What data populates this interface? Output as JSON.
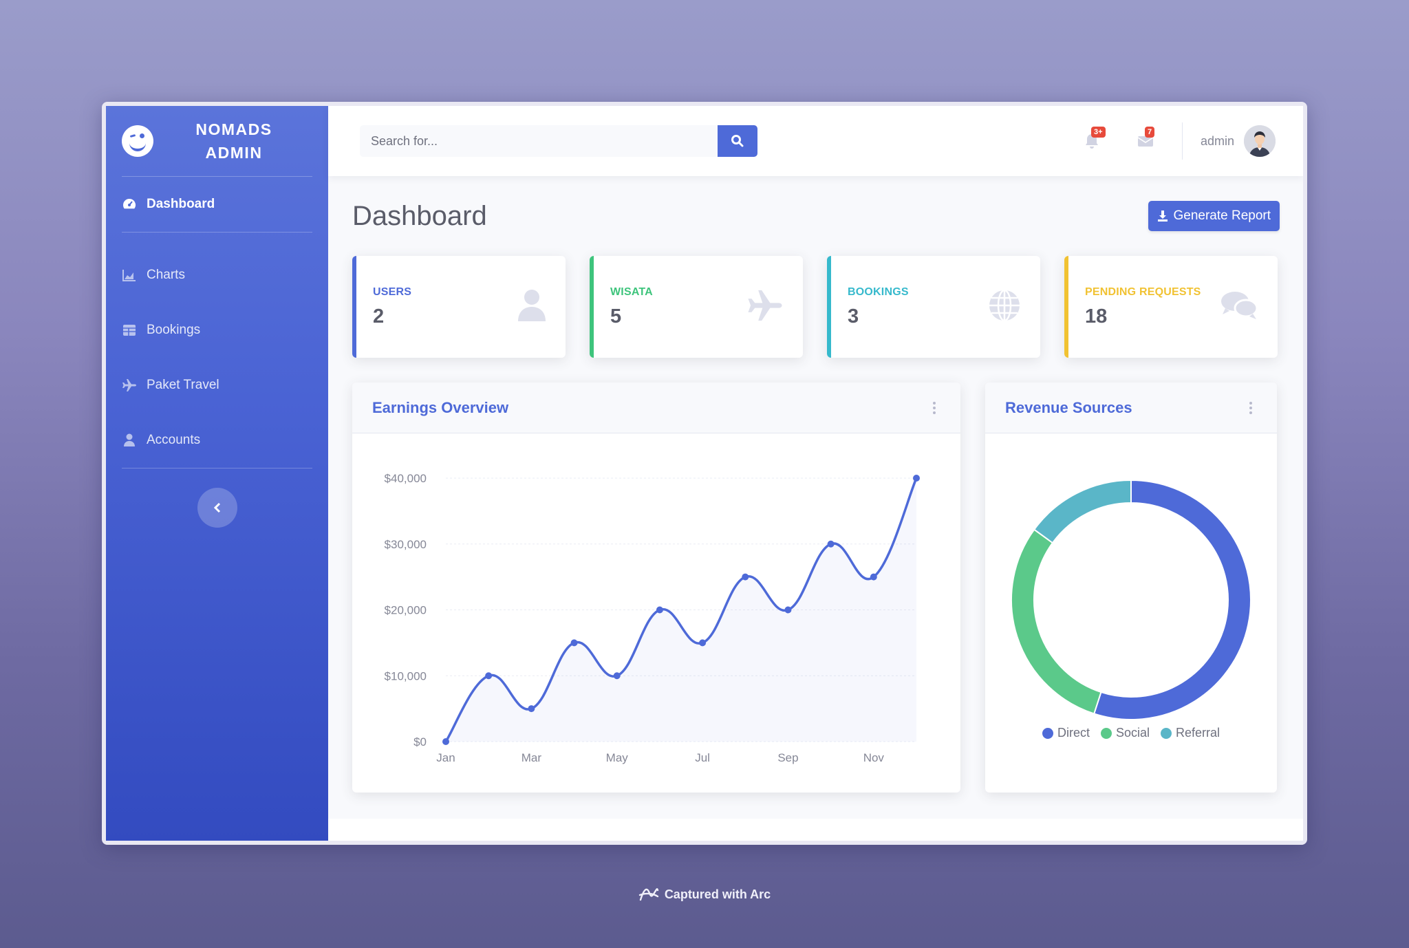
{
  "brand": {
    "line1": "NOMADS",
    "line2": "ADMIN"
  },
  "sidebar": {
    "items": [
      {
        "label": "Dashboard",
        "icon": "tachometer-icon",
        "active": true
      },
      {
        "label": "Charts",
        "icon": "area-chart-icon"
      },
      {
        "label": "Bookings",
        "icon": "table-icon"
      },
      {
        "label": "Paket Travel",
        "icon": "plane-icon"
      },
      {
        "label": "Accounts",
        "icon": "user-icon"
      }
    ],
    "toggle_icon": "chevron-left-icon"
  },
  "topbar": {
    "search_placeholder": "Search for...",
    "alerts_badge": "3+",
    "messages_badge": "7",
    "user_name": "admin"
  },
  "page": {
    "title": "Dashboard",
    "report_button": "Generate Report"
  },
  "cards": [
    {
      "label": "USERS",
      "value": "2",
      "color": "#4e6ad8",
      "icon": "user-icon"
    },
    {
      "label": "WISATA",
      "value": "5",
      "color": "#3ec47c",
      "icon": "plane-icon"
    },
    {
      "label": "BOOKINGS",
      "value": "3",
      "color": "#36b9cc",
      "icon": "globe-icon"
    },
    {
      "label": "PENDING REQUESTS",
      "value": "18",
      "color": "#f1c232",
      "icon": "comments-icon"
    }
  ],
  "earnings": {
    "title": "Earnings Overview",
    "chart_data": {
      "type": "area",
      "x": [
        "Jan",
        "Feb",
        "Mar",
        "Apr",
        "May",
        "Jun",
        "Jul",
        "Aug",
        "Sep",
        "Oct",
        "Nov",
        "Dec"
      ],
      "xtick_labels": [
        "Jan",
        "Mar",
        "May",
        "Jul",
        "Sep",
        "Nov"
      ],
      "values": [
        0,
        10000,
        5000,
        15000,
        10000,
        20000,
        15000,
        25000,
        20000,
        30000,
        25000,
        40000
      ],
      "ytick_labels": [
        "$0",
        "$10,000",
        "$20,000",
        "$30,000",
        "$40,000"
      ],
      "ylim": [
        0,
        40000
      ],
      "color": "#4e6ad8",
      "grid": true
    }
  },
  "revenue": {
    "title": "Revenue Sources",
    "chart_data": {
      "type": "pie",
      "labels": [
        "Direct",
        "Social",
        "Referral"
      ],
      "values": [
        55,
        30,
        15
      ],
      "colors": [
        "#4e6ad8",
        "#5bc98a",
        "#5ab6c8"
      ],
      "legend": "bottom"
    }
  },
  "arc_caption": "Captured with Arc"
}
